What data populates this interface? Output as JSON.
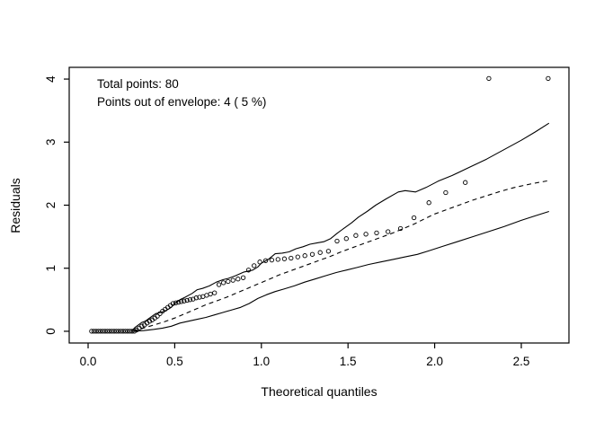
{
  "chart_data": {
    "type": "scatter",
    "title": "",
    "xlabel": "Theoretical quantiles",
    "ylabel": "Residuals",
    "xlim": [
      -0.109,
      2.775
    ],
    "ylim": [
      -0.186,
      4.186
    ],
    "x_ticks": [
      0.0,
      0.5,
      1.0,
      1.5,
      2.0,
      2.5
    ],
    "x_tick_labels": [
      "0.0",
      "0.5",
      "1.0",
      "1.5",
      "2.0",
      "2.5"
    ],
    "y_ticks": [
      0,
      1,
      2,
      3,
      4
    ],
    "y_tick_labels": [
      "0",
      "1",
      "2",
      "3",
      "4"
    ],
    "grid": false,
    "legend": "none",
    "axis_color": "#000000",
    "point_color": "#000000",
    "line_color": "#000000",
    "background": "#ffffff",
    "annotations": [
      "Total points: 80",
      "Points out of envelope: 4 ( 5 %)"
    ],
    "total_points": 80,
    "points_out_of_envelope": 4,
    "percent_out_of_envelope": 5,
    "series": [
      {
        "name": "residuals-points",
        "kind": "points",
        "marker": "open-circle",
        "points": [
          [
            0.02,
            0.0
          ],
          [
            0.033,
            0.0
          ],
          [
            0.046,
            0.0
          ],
          [
            0.059,
            0.0
          ],
          [
            0.072,
            0.0
          ],
          [
            0.085,
            0.0
          ],
          [
            0.098,
            0.0
          ],
          [
            0.111,
            0.0
          ],
          [
            0.124,
            0.0
          ],
          [
            0.137,
            0.0
          ],
          [
            0.15,
            0.0
          ],
          [
            0.163,
            0.0
          ],
          [
            0.176,
            0.0
          ],
          [
            0.189,
            0.0
          ],
          [
            0.202,
            0.0
          ],
          [
            0.215,
            0.0
          ],
          [
            0.228,
            0.0
          ],
          [
            0.241,
            0.0
          ],
          [
            0.254,
            0.0
          ],
          [
            0.267,
            0.0
          ],
          [
            0.28,
            0.02
          ],
          [
            0.295,
            0.05
          ],
          [
            0.31,
            0.08
          ],
          [
            0.325,
            0.1
          ],
          [
            0.34,
            0.13
          ],
          [
            0.355,
            0.16
          ],
          [
            0.37,
            0.18
          ],
          [
            0.385,
            0.21
          ],
          [
            0.4,
            0.24
          ],
          [
            0.415,
            0.28
          ],
          [
            0.43,
            0.32
          ],
          [
            0.445,
            0.35
          ],
          [
            0.46,
            0.38
          ],
          [
            0.475,
            0.41
          ],
          [
            0.49,
            0.44
          ],
          [
            0.506,
            0.45
          ],
          [
            0.522,
            0.46
          ],
          [
            0.538,
            0.47
          ],
          [
            0.554,
            0.48
          ],
          [
            0.571,
            0.49
          ],
          [
            0.588,
            0.5
          ],
          [
            0.606,
            0.51
          ],
          [
            0.624,
            0.53
          ],
          [
            0.643,
            0.54
          ],
          [
            0.663,
            0.55
          ],
          [
            0.684,
            0.57
          ],
          [
            0.706,
            0.59
          ],
          [
            0.73,
            0.61
          ],
          [
            0.755,
            0.74
          ],
          [
            0.781,
            0.77
          ],
          [
            0.808,
            0.79
          ],
          [
            0.836,
            0.81
          ],
          [
            0.865,
            0.83
          ],
          [
            0.895,
            0.85
          ],
          [
            0.926,
            0.97
          ],
          [
            0.958,
            1.04
          ],
          [
            0.991,
            1.1
          ],
          [
            1.025,
            1.12
          ],
          [
            1.06,
            1.13
          ],
          [
            1.096,
            1.14
          ],
          [
            1.133,
            1.15
          ],
          [
            1.171,
            1.16
          ],
          [
            1.21,
            1.18
          ],
          [
            1.251,
            1.2
          ],
          [
            1.294,
            1.22
          ],
          [
            1.339,
            1.25
          ],
          [
            1.387,
            1.27
          ],
          [
            1.437,
            1.43
          ],
          [
            1.49,
            1.47
          ],
          [
            1.545,
            1.52
          ],
          [
            1.603,
            1.54
          ],
          [
            1.665,
            1.56
          ],
          [
            1.731,
            1.58
          ],
          [
            1.803,
            1.63
          ],
          [
            1.881,
            1.8
          ],
          [
            1.967,
            2.04
          ],
          [
            2.064,
            2.2
          ],
          [
            2.177,
            2.36
          ],
          [
            2.313,
            4.01
          ],
          [
            2.655,
            4.01
          ]
        ]
      },
      {
        "name": "upper-envelope",
        "kind": "line",
        "style": "solid",
        "points": [
          [
            0.25,
            0.0
          ],
          [
            0.27,
            0.06
          ],
          [
            0.29,
            0.1
          ],
          [
            0.31,
            0.14
          ],
          [
            0.33,
            0.16
          ],
          [
            0.36,
            0.22
          ],
          [
            0.39,
            0.28
          ],
          [
            0.42,
            0.3
          ],
          [
            0.45,
            0.33
          ],
          [
            0.48,
            0.38
          ],
          [
            0.5,
            0.44
          ],
          [
            0.53,
            0.5
          ],
          [
            0.56,
            0.54
          ],
          [
            0.6,
            0.6
          ],
          [
            0.63,
            0.66
          ],
          [
            0.66,
            0.68
          ],
          [
            0.7,
            0.72
          ],
          [
            0.74,
            0.78
          ],
          [
            0.78,
            0.82
          ],
          [
            0.81,
            0.84
          ],
          [
            0.85,
            0.88
          ],
          [
            0.9,
            0.94
          ],
          [
            0.95,
            0.97
          ],
          [
            0.98,
            1.02
          ],
          [
            1.0,
            1.08
          ],
          [
            1.04,
            1.14
          ],
          [
            1.08,
            1.23
          ],
          [
            1.12,
            1.24
          ],
          [
            1.16,
            1.26
          ],
          [
            1.2,
            1.31
          ],
          [
            1.24,
            1.34
          ],
          [
            1.28,
            1.38
          ],
          [
            1.32,
            1.4
          ],
          [
            1.36,
            1.42
          ],
          [
            1.4,
            1.47
          ],
          [
            1.44,
            1.56
          ],
          [
            1.48,
            1.64
          ],
          [
            1.52,
            1.72
          ],
          [
            1.56,
            1.81
          ],
          [
            1.61,
            1.9
          ],
          [
            1.66,
            2.0
          ],
          [
            1.72,
            2.1
          ],
          [
            1.79,
            2.21
          ],
          [
            1.83,
            2.23
          ],
          [
            1.89,
            2.21
          ],
          [
            1.95,
            2.28
          ],
          [
            2.02,
            2.38
          ],
          [
            2.1,
            2.47
          ],
          [
            2.2,
            2.6
          ],
          [
            2.3,
            2.73
          ],
          [
            2.4,
            2.88
          ],
          [
            2.5,
            3.03
          ],
          [
            2.58,
            3.16
          ],
          [
            2.66,
            3.3
          ]
        ]
      },
      {
        "name": "median-line",
        "kind": "line",
        "style": "dashed",
        "points": [
          [
            0.26,
            0.0
          ],
          [
            0.32,
            0.05
          ],
          [
            0.38,
            0.1
          ],
          [
            0.44,
            0.15
          ],
          [
            0.5,
            0.21
          ],
          [
            0.56,
            0.28
          ],
          [
            0.62,
            0.35
          ],
          [
            0.68,
            0.42
          ],
          [
            0.74,
            0.48
          ],
          [
            0.8,
            0.54
          ],
          [
            0.86,
            0.61
          ],
          [
            0.92,
            0.68
          ],
          [
            0.98,
            0.75
          ],
          [
            1.04,
            0.82
          ],
          [
            1.1,
            0.89
          ],
          [
            1.16,
            0.95
          ],
          [
            1.22,
            1.01
          ],
          [
            1.28,
            1.07
          ],
          [
            1.34,
            1.13
          ],
          [
            1.4,
            1.19
          ],
          [
            1.46,
            1.26
          ],
          [
            1.52,
            1.32
          ],
          [
            1.58,
            1.38
          ],
          [
            1.64,
            1.44
          ],
          [
            1.7,
            1.5
          ],
          [
            1.76,
            1.56
          ],
          [
            1.82,
            1.63
          ],
          [
            1.88,
            1.7
          ],
          [
            1.94,
            1.78
          ],
          [
            2.0,
            1.86
          ],
          [
            2.07,
            1.93
          ],
          [
            2.14,
            2.0
          ],
          [
            2.22,
            2.08
          ],
          [
            2.3,
            2.15
          ],
          [
            2.38,
            2.22
          ],
          [
            2.46,
            2.28
          ],
          [
            2.56,
            2.34
          ],
          [
            2.66,
            2.39
          ]
        ]
      },
      {
        "name": "lower-envelope",
        "kind": "line",
        "style": "solid",
        "points": [
          [
            0.26,
            0.0
          ],
          [
            0.32,
            0.01
          ],
          [
            0.38,
            0.03
          ],
          [
            0.43,
            0.05
          ],
          [
            0.48,
            0.08
          ],
          [
            0.53,
            0.13
          ],
          [
            0.58,
            0.16
          ],
          [
            0.63,
            0.19
          ],
          [
            0.68,
            0.22
          ],
          [
            0.73,
            0.26
          ],
          [
            0.78,
            0.3
          ],
          [
            0.83,
            0.34
          ],
          [
            0.88,
            0.38
          ],
          [
            0.93,
            0.44
          ],
          [
            0.98,
            0.52
          ],
          [
            1.03,
            0.58
          ],
          [
            1.08,
            0.63
          ],
          [
            1.13,
            0.67
          ],
          [
            1.19,
            0.72
          ],
          [
            1.25,
            0.78
          ],
          [
            1.31,
            0.83
          ],
          [
            1.37,
            0.88
          ],
          [
            1.43,
            0.93
          ],
          [
            1.49,
            0.97
          ],
          [
            1.55,
            1.01
          ],
          [
            1.62,
            1.06
          ],
          [
            1.69,
            1.1
          ],
          [
            1.76,
            1.14
          ],
          [
            1.83,
            1.18
          ],
          [
            1.9,
            1.22
          ],
          [
            1.97,
            1.28
          ],
          [
            2.05,
            1.35
          ],
          [
            2.13,
            1.42
          ],
          [
            2.22,
            1.5
          ],
          [
            2.31,
            1.58
          ],
          [
            2.4,
            1.66
          ],
          [
            2.5,
            1.76
          ],
          [
            2.58,
            1.83
          ],
          [
            2.66,
            1.9
          ]
        ]
      }
    ]
  }
}
